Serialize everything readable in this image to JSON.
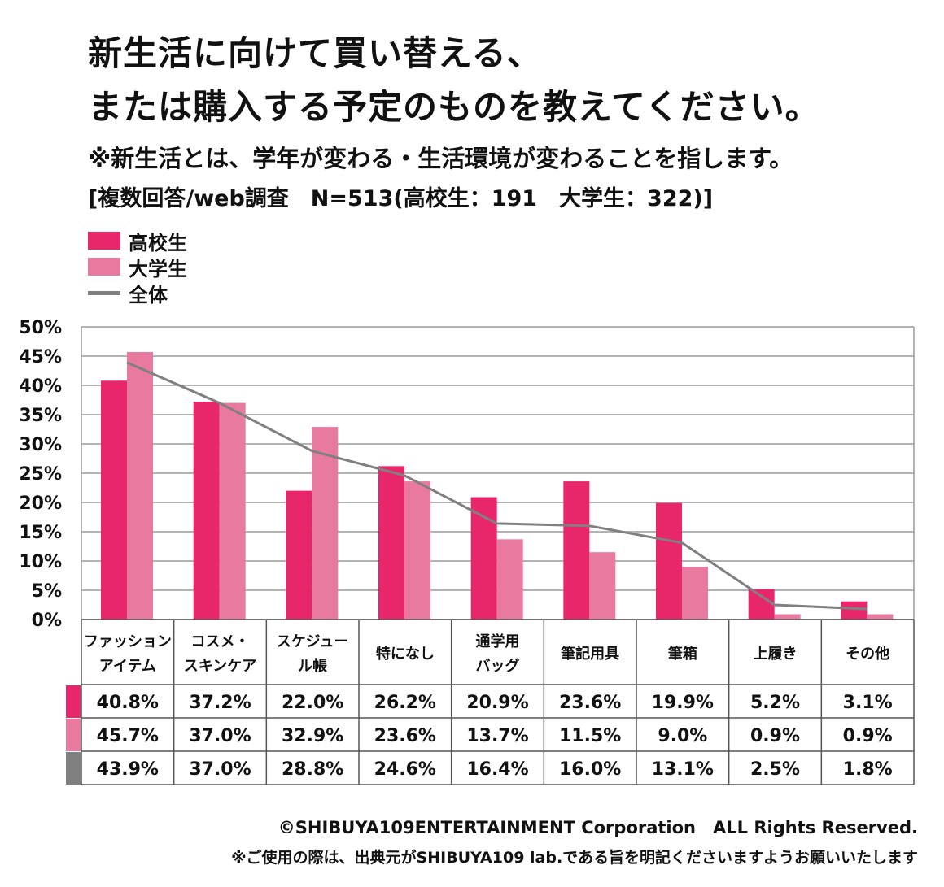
{
  "header": {
    "title_line1": "新生活に向けて買い替える、",
    "title_line2": "または購入する予定のものを教えてください。",
    "note": "※新生活とは、学年が変わる・生活環境が変わることを指します。",
    "method": "[複数回答/web調査　N=513(高校生：191　大学生：322)]"
  },
  "legend": [
    {
      "label": "高校生",
      "color": "#e8266a",
      "kind": "bar"
    },
    {
      "label": "大学生",
      "color": "#e8799f",
      "kind": "bar"
    },
    {
      "label": "全体",
      "color": "#808080",
      "kind": "line"
    }
  ],
  "chart_data": {
    "type": "bar",
    "title": "新生活に向けて買い替える、または購入する予定のものを教えてください。",
    "ylim": [
      0,
      50
    ],
    "yticks": [
      "0%",
      "5%",
      "10%",
      "15%",
      "20%",
      "25%",
      "30%",
      "35%",
      "40%",
      "45%",
      "50%"
    ],
    "categories": [
      [
        "ファッション",
        "アイテム"
      ],
      [
        "コスメ・",
        "スキンケア"
      ],
      [
        "スケジュー",
        "ル帳"
      ],
      [
        "特になし"
      ],
      [
        "通学用",
        "バッグ"
      ],
      [
        "筆記用具"
      ],
      [
        "筆箱"
      ],
      [
        "上履き"
      ],
      [
        "その他"
      ]
    ],
    "series": [
      {
        "name": "高校生",
        "type": "bar",
        "color": "#e8266a",
        "values": [
          40.8,
          37.2,
          22.0,
          26.2,
          20.9,
          23.6,
          19.9,
          5.2,
          3.1
        ],
        "labels": [
          "40.8%",
          "37.2%",
          "22.0%",
          "26.2%",
          "20.9%",
          "23.6%",
          "19.9%",
          "5.2%",
          "3.1%"
        ]
      },
      {
        "name": "大学生",
        "type": "bar",
        "color": "#e8799f",
        "values": [
          45.7,
          37.0,
          32.9,
          23.6,
          13.7,
          11.5,
          9.0,
          0.9,
          0.9
        ],
        "labels": [
          "45.7%",
          "37.0%",
          "32.9%",
          "23.6%",
          "13.7%",
          "11.5%",
          "9.0%",
          "0.9%",
          "0.9%"
        ]
      },
      {
        "name": "全体",
        "type": "line",
        "color": "#808080",
        "values": [
          43.9,
          37.0,
          28.8,
          24.6,
          16.4,
          16.0,
          13.1,
          2.5,
          1.8
        ],
        "labels": [
          "43.9%",
          "37.0%",
          "28.8%",
          "24.6%",
          "16.4%",
          "16.0%",
          "13.1%",
          "2.5%",
          "1.8%"
        ]
      }
    ]
  },
  "footer": {
    "copyright": "©SHIBUYA109ENTERTAINMENT Corporation　ALL Rights Reserved.",
    "usage": "※ご使用の際は、出典元がSHIBUYA109 lab.である旨を明記くださいますようお願いいたします"
  }
}
